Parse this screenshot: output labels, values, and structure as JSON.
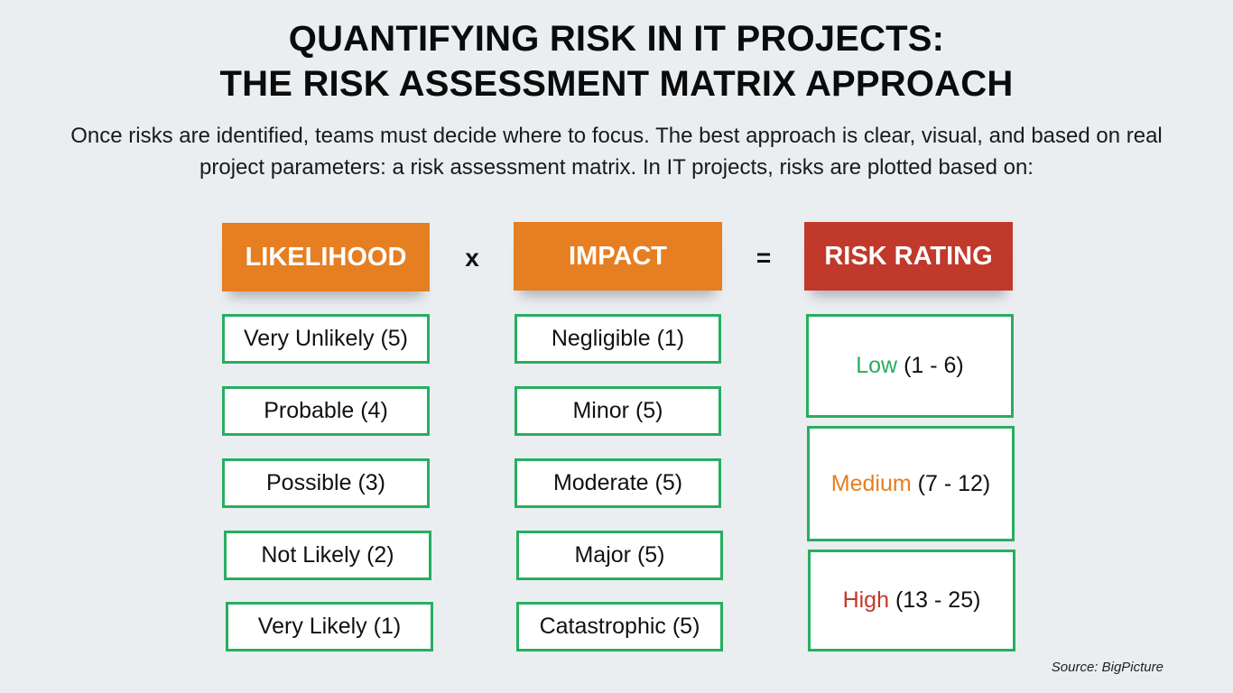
{
  "title": {
    "line1": "QUANTIFYING RISK IN IT PROJECTS:",
    "line2": "THE RISK ASSESSMENT MATRIX APPROACH"
  },
  "intro": "Once risks are identified, teams must decide where to focus. The best approach is clear, visual, and based on real project parameters: a risk assessment matrix. In IT projects, risks are plotted based on:",
  "operators": {
    "times": "x",
    "equals": "="
  },
  "colors": {
    "orange": "#e67e22",
    "red": "#c0392b",
    "green": "#27ae60"
  },
  "likelihood": {
    "header": "LIKELIHOOD",
    "items": [
      "Very Unlikely (5)",
      "Probable (4)",
      "Possible (3)",
      "Not Likely (2)",
      "Very Likely (1)"
    ]
  },
  "impact": {
    "header": "IMPACT",
    "items": [
      "Negligible (1)",
      "Minor (5)",
      "Moderate (5)",
      "Major (5)",
      "Catastrophic (5)"
    ]
  },
  "risk_rating": {
    "header": "RISK RATING",
    "levels": [
      {
        "name": "Low",
        "range": "(1 - 6)"
      },
      {
        "name": "Medium",
        "range": "(7 - 12)"
      },
      {
        "name": "High",
        "range": "(13 - 25)"
      }
    ]
  },
  "source": "Source: BigPicture"
}
